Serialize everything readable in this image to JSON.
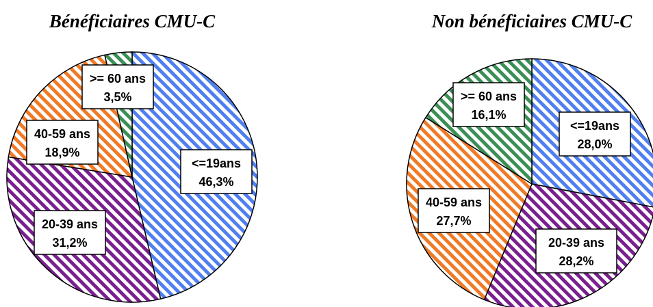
{
  "chart_data": [
    {
      "type": "pie",
      "title": "Bénéficiaires CMU-C",
      "slices": [
        {
          "category": "<=19ans",
          "value": 46.3,
          "label_value": "46,3%",
          "color": "#4f7ff0"
        },
        {
          "category": "20-39 ans",
          "value": 31.2,
          "label_value": "31,2%",
          "color": "#7a1f8f"
        },
        {
          "category": "40-59 ans",
          "value": 18.9,
          "label_value": "18,9%",
          "color": "#f07a25"
        },
        {
          "category": ">= 60 ans",
          "value": 3.5,
          "label_value": "3,5%",
          "color": "#3a8f55"
        }
      ]
    },
    {
      "type": "pie",
      "title": "Non bénéficiaires CMU-C",
      "slices": [
        {
          "category": "<=19ans",
          "value": 28.0,
          "label_value": "28,0%",
          "color": "#4f7ff0"
        },
        {
          "category": "20-39 ans",
          "value": 28.2,
          "label_value": "28,2%",
          "color": "#7a1f8f"
        },
        {
          "category": "40-59 ans",
          "value": 27.7,
          "label_value": "27,7%",
          "color": "#f07a25"
        },
        {
          "category": ">= 60 ans",
          "value": 16.1,
          "label_value": "16,1%",
          "color": "#3a8f55"
        }
      ]
    }
  ]
}
